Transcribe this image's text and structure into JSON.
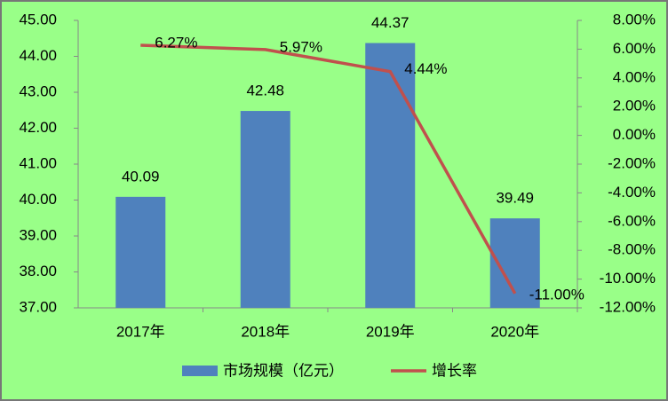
{
  "chart_data": {
    "type": "bar-line",
    "categories": [
      "2017年",
      "2018年",
      "2019年",
      "2020年"
    ],
    "series": [
      {
        "name": "市场规模（亿元）",
        "type": "bar",
        "color": "#4f81bd",
        "values": [
          40.09,
          42.48,
          44.37,
          39.49
        ]
      },
      {
        "name": "增长率",
        "type": "line",
        "axis": "y2",
        "color": "#c0504d",
        "values": [
          6.27,
          5.97,
          4.44,
          -11.0
        ],
        "value_labels": [
          "6.27%",
          "5.97%",
          "4.44%",
          "-11.00%"
        ]
      }
    ],
    "ylim": [
      37,
      45
    ],
    "yticks": [
      {
        "value": 37,
        "label": "37.00"
      },
      {
        "value": 38,
        "label": "38.00"
      },
      {
        "value": 39,
        "label": "39.00"
      },
      {
        "value": 40,
        "label": "40.00"
      },
      {
        "value": 41,
        "label": "41.00"
      },
      {
        "value": 42,
        "label": "42.00"
      },
      {
        "value": 43,
        "label": "43.00"
      },
      {
        "value": 44,
        "label": "44.00"
      },
      {
        "value": 45,
        "label": "45.00"
      }
    ],
    "y2lim": [
      -12,
      8
    ],
    "y2ticks": [
      {
        "value": -12,
        "label": "-12.00%"
      },
      {
        "value": -10,
        "label": "-10.00%"
      },
      {
        "value": -8,
        "label": "-8.00%"
      },
      {
        "value": -6,
        "label": "-6.00%"
      },
      {
        "value": -4,
        "label": "-4.00%"
      },
      {
        "value": -2,
        "label": "-2.00%"
      },
      {
        "value": 0,
        "label": "0.00%"
      },
      {
        "value": 2,
        "label": "2.00%"
      },
      {
        "value": 4,
        "label": "4.00%"
      },
      {
        "value": 6,
        "label": "6.00%"
      },
      {
        "value": 8,
        "label": "8.00%"
      }
    ],
    "legend": "bottom",
    "grid": false
  }
}
